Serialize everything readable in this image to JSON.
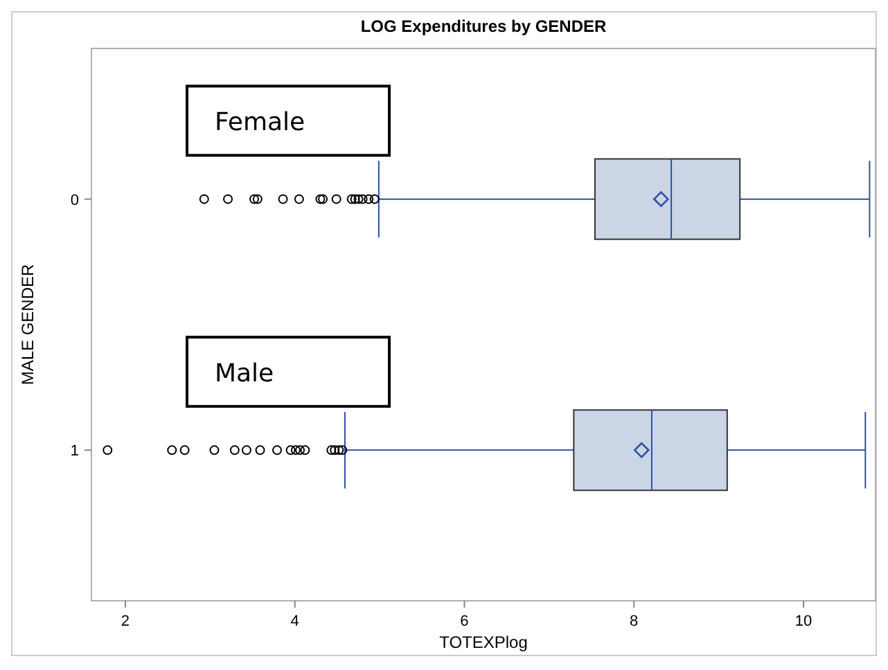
{
  "chart_data": {
    "type": "box",
    "title": "LOG Expenditures by GENDER",
    "xlabel": "TOTEXPlog",
    "ylabel": "MALE GENDER",
    "orientation": "horizontal",
    "categories": [
      "0",
      "1"
    ],
    "color": "#cad5e5",
    "xlim": [
      1.6,
      10.85
    ],
    "xticks": [
      2,
      4,
      6,
      8,
      10
    ],
    "annotations": [
      "Female",
      "Male"
    ],
    "boxes": [
      {
        "low": 4.99,
        "q1": 7.54,
        "median": 8.44,
        "q3": 9.25,
        "high": 10.78,
        "mean": 8.32,
        "outliers": [
          2.93,
          3.21,
          3.52,
          3.56,
          3.86,
          4.05,
          4.3,
          4.33,
          4.49,
          4.67,
          4.71,
          4.75,
          4.8,
          4.87,
          4.94
        ]
      },
      {
        "low": 4.59,
        "q1": 7.29,
        "median": 8.21,
        "q3": 9.1,
        "high": 10.73,
        "mean": 8.09,
        "outliers": [
          1.79,
          2.55,
          2.7,
          3.05,
          3.29,
          3.43,
          3.59,
          3.79,
          3.95,
          4.01,
          4.06,
          4.12,
          4.43,
          4.47,
          4.52,
          4.56
        ]
      }
    ]
  }
}
